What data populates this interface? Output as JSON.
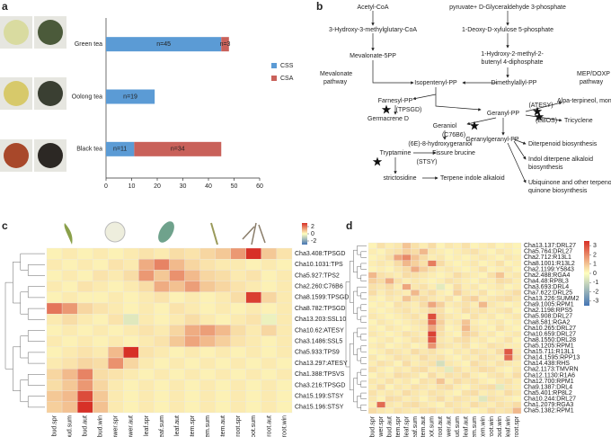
{
  "chart_data": [
    {
      "panel": "a",
      "type": "bar",
      "orientation": "horizontal",
      "stacked": true,
      "categories": [
        "Green tea",
        "Oolong tea",
        "Black tea"
      ],
      "series": [
        {
          "name": "CSS",
          "color": "#5b9bd5",
          "values": [
            45,
            19,
            11
          ],
          "value_labels": [
            "n=45",
            "n=19",
            "n=11"
          ]
        },
        {
          "name": "CSA",
          "color": "#c9615a",
          "values": [
            3,
            0,
            34
          ],
          "value_labels": [
            "n=3",
            null,
            "n=34"
          ]
        }
      ],
      "xlim": [
        0,
        60
      ],
      "xticks": [
        0,
        10,
        20,
        30,
        40,
        50,
        60
      ],
      "legend": "right"
    },
    {
      "panel": "c",
      "type": "heatmap",
      "rows": [
        "Cha3.408:TPSGD",
        "Cha10.1031:TPS",
        "Cha5.927:TPS2",
        "Cha2.260:C76B6",
        "Cha8.1599:TPSGD",
        "Cha8.782:TPSGD",
        "Cha13.203:SSL10",
        "Cha10.62:ATESY",
        "Cha3.1486:SSL5",
        "Cha5.933:TPS9",
        "Cha13.297:ATESY",
        "Cha1.388:TPSVS",
        "Cha3.216:TPSGD",
        "Cha15.199:STSY",
        "Cha15.196:STSY"
      ],
      "columns": [
        "bud.spr",
        "bud.sum",
        "bud.aut",
        "bud.win",
        "flower.spr",
        "flower.aut",
        "leaf.spr",
        "leaf.sum",
        "leaf.aut",
        "stem.spr",
        "stem.sum",
        "stem.aut",
        "root.spr",
        "root.sum",
        "root.aut",
        "root.win"
      ],
      "values": [
        [
          0.2,
          0.3,
          0.2,
          0.3,
          0.2,
          0.3,
          0.4,
          0.3,
          0.5,
          0.4,
          0.6,
          0.8,
          1.5,
          3,
          0.8,
          0.4
        ],
        [
          0.3,
          0.2,
          0.3,
          0.2,
          0.4,
          0.3,
          1.2,
          1.8,
          1.0,
          0.6,
          0.4,
          0.3,
          0.3,
          0.2,
          0.3,
          0.2
        ],
        [
          0.2,
          0.3,
          0.2,
          0.4,
          0.3,
          0.5,
          1.5,
          0.8,
          1.6,
          1.0,
          0.6,
          0.5,
          0.3,
          0.4,
          0.2,
          0.3
        ],
        [
          0.3,
          0.2,
          0.4,
          0.3,
          0.2,
          0.3,
          0.5,
          1.2,
          0.9,
          1.4,
          0.8,
          0.6,
          0.4,
          0.3,
          0.2,
          0.3
        ],
        [
          0.2,
          0.3,
          0.2,
          0.2,
          0.3,
          0.2,
          0.3,
          0.4,
          0.2,
          0.3,
          0.2,
          0.3,
          0.5,
          2.8,
          0.6,
          0.3
        ],
        [
          2,
          1.5,
          0.6,
          0.4,
          0.3,
          0.2,
          0.3,
          0.2,
          0.4,
          0.3,
          0.2,
          0.3,
          0.2,
          0.3,
          0.2,
          0.3
        ],
        [
          0.3,
          0.5,
          0.3,
          0.2,
          0.4,
          -0.5,
          0.3,
          0.2,
          0.3,
          0.5,
          0.3,
          0.2,
          0.3,
          0.4,
          -0.3,
          0.3
        ],
        [
          0.2,
          0.3,
          0.2,
          0.3,
          0.2,
          0.3,
          0.4,
          0.3,
          0.6,
          1.2,
          1.4,
          1.0,
          0.5,
          0.3,
          0.6,
          0.3
        ],
        [
          0.3,
          0.2,
          0.3,
          0.2,
          0.3,
          0.2,
          0.3,
          0.4,
          0.8,
          1.3,
          1.0,
          0.7,
          0.4,
          0.3,
          0.2,
          0.3
        ],
        [
          0.2,
          0.3,
          0.4,
          0.3,
          1.0,
          3,
          0.4,
          0.3,
          0.2,
          0.3,
          0.2,
          0.3,
          0.2,
          0.3,
          0.2,
          0.3
        ],
        [
          0.3,
          0.4,
          0.6,
          0.5,
          1.6,
          0.6,
          0.3,
          0.2,
          0.3,
          0.2,
          0.3,
          0.2,
          0.3,
          0.2,
          0.3,
          0.2
        ],
        [
          0.6,
          1.0,
          1.8,
          0.5,
          0.4,
          0.3,
          0.2,
          0.3,
          0.2,
          0.3,
          0.2,
          0.3,
          0.2,
          0.3,
          0.2,
          0.3
        ],
        [
          0.5,
          0.8,
          1.5,
          0.6,
          0.3,
          0.2,
          0.3,
          0.2,
          0.3,
          0.2,
          0.3,
          0.2,
          0.3,
          0.2,
          0.3,
          0.2
        ],
        [
          0.8,
          1.0,
          2.6,
          0.8,
          0.3,
          0.2,
          0.3,
          0.2,
          0.3,
          0.2,
          0.3,
          0.2,
          0.3,
          0.2,
          0.3,
          0.2
        ],
        [
          0.7,
          0.9,
          3,
          0.9,
          0.3,
          0.2,
          0.3,
          0.2,
          0.3,
          0.2,
          0.3,
          0.2,
          0.3,
          0.2,
          0.3,
          0.2
        ]
      ],
      "zlim": [
        -3,
        3
      ],
      "zticks": [
        2,
        0,
        -2
      ],
      "colors": [
        "#4575b4",
        "#ffffbf",
        "#d73027"
      ]
    },
    {
      "panel": "d",
      "type": "heatmap",
      "rows": [
        "Cha13.137:DRL27",
        "Cha5.764:DRL27",
        "Cha2.712:R13L1",
        "Cha8.1001:R13L2",
        "Cha2.1199:Y5843",
        "Cha2.488:RGA4",
        "Cha4.48:RP8L3",
        "Cha3.693:DRL4",
        "Cha7.622:DRL25",
        "Cha13.226:SUMM2",
        "Cha9.1005:RPM1",
        "Cha2.1198:RPS5",
        "Cha5.908:DRL27",
        "Cha8.581:RGA2",
        "Cha10.265:DRL27",
        "Cha10.659:DRL27",
        "Cha8.1550:DRL28",
        "Cha5.1205:RPM1",
        "Cha15.711:R13L1",
        "Cha14.1595:RPP13",
        "Cha14.438:RHS",
        "Cha2.1173:TMVRN",
        "Cha12.1130:R1A6",
        "Cha12.700:RPM1",
        "Cha9.1387:DRL4",
        "Cha5.401:RP8L2",
        "Cha10.244:DRL27",
        "Cha1.2079:RGA3",
        "Cha5.1382:RPM1"
      ],
      "columns": [
        "bud.spr",
        "flower.spr",
        "bud.aut",
        "stem.spr",
        "leaf.spr",
        "leaf.sum",
        "stem.aut",
        "root.sum",
        "root.aut",
        "flower.aut",
        "bud.sum",
        "leaf.aut",
        "stem.sum",
        "stem.win",
        "root.win",
        "bud.win",
        "leaf.win",
        "root.spr"
      ],
      "values": [
        [
          0.2,
          0.5,
          0.3,
          0.4,
          1.0,
          0.5,
          0.3,
          0.6,
          0.2,
          0.4,
          0.3,
          0.5,
          0.2,
          0.3,
          0.4,
          0.2,
          0.3,
          0.2
        ],
        [
          0.3,
          0.2,
          0.4,
          0.5,
          0.8,
          0.6,
          1.2,
          0.4,
          0.3,
          0.2,
          0.3,
          0.4,
          0.5,
          0.3,
          0.2,
          0.4,
          0.3,
          0.2
        ],
        [
          0.2,
          0.3,
          0.5,
          1.5,
          2.0,
          1.0,
          0.6,
          0.3,
          0.4,
          0.2,
          0.3,
          0.2,
          0.3,
          0.4,
          0.3,
          0.2,
          0.4,
          0.3
        ],
        [
          0.3,
          0.4,
          0.3,
          0.6,
          1.2,
          0.8,
          0.5,
          2.2,
          0.6,
          0.3,
          0.2,
          0.3,
          0.4,
          0.2,
          0.3,
          0.5,
          0.2,
          0.3
        ],
        [
          0.2,
          0.3,
          0.2,
          0.4,
          0.6,
          1.4,
          0.8,
          0.5,
          0.3,
          0.4,
          0.3,
          0.2,
          0.3,
          0.5,
          0.2,
          0.3,
          0.4,
          0.2
        ],
        [
          1.2,
          0.5,
          0.4,
          0.3,
          0.6,
          0.5,
          0.4,
          0.3,
          0.2,
          0.3,
          0.6,
          0.4,
          0.3,
          0.2,
          0.5,
          1.0,
          0.3,
          0.4
        ],
        [
          0.8,
          0.6,
          1.4,
          0.5,
          0.3,
          0.4,
          0.3,
          0.2,
          0.3,
          0.5,
          0.4,
          0.3,
          0.2,
          0.4,
          0.3,
          0.6,
          0.5,
          0.3
        ],
        [
          0.5,
          0.4,
          0.6,
          0.3,
          1.5,
          0.4,
          0.5,
          0.3,
          -0.5,
          0.2,
          0.6,
          0.3,
          0.4,
          0.2,
          0.3,
          0.4,
          0.2,
          0.3
        ],
        [
          0.6,
          0.3,
          0.5,
          0.4,
          0.3,
          1.2,
          0.4,
          0.6,
          0.3,
          0.2,
          0.8,
          0.4,
          0.3,
          0.5,
          0.2,
          0.3,
          0.4,
          0.6
        ],
        [
          0.3,
          0.2,
          0.4,
          0.3,
          1.0,
          0.5,
          0.6,
          0.4,
          0.3,
          0.5,
          0.2,
          0.6,
          0.8,
          0.3,
          0.4,
          0.5,
          0.6,
          0.4
        ],
        [
          0.2,
          0.3,
          0.2,
          0.5,
          0.4,
          0.3,
          0.6,
          1.5,
          0.8,
          0.3,
          0.4,
          0.5,
          0.3,
          1.2,
          0.4,
          0.3,
          0.2,
          0.3
        ],
        [
          0.3,
          0.2,
          0.3,
          0.4,
          0.5,
          0.3,
          0.4,
          0.6,
          0.5,
          0.2,
          0.3,
          0.6,
          0.4,
          0.5,
          0.3,
          0.4,
          0.5,
          0.2
        ],
        [
          0.4,
          0.3,
          0.2,
          0.3,
          0.4,
          0.5,
          0.3,
          3.0,
          0.6,
          0.4,
          0.3,
          0.2,
          0.5,
          0.3,
          0.4,
          0.2,
          0.3,
          0.4
        ],
        [
          0.2,
          0.4,
          0.3,
          0.2,
          0.3,
          0.4,
          0.5,
          2.5,
          0.8,
          0.3,
          0.4,
          1.0,
          0.3,
          0.2,
          0.3,
          0.4,
          0.2,
          0.3
        ],
        [
          0.3,
          0.2,
          0.4,
          0.3,
          0.2,
          0.3,
          0.4,
          1.5,
          0.6,
          0.2,
          0.3,
          1.2,
          0.4,
          0.3,
          0.2,
          0.5,
          0.3,
          0.2
        ],
        [
          0.4,
          0.3,
          0.2,
          0.3,
          0.5,
          0.4,
          0.3,
          3.2,
          0.5,
          0.3,
          0.2,
          0.8,
          0.6,
          0.3,
          0.4,
          0.2,
          0.3,
          0.4
        ],
        [
          0.2,
          0.3,
          0.4,
          0.2,
          0.3,
          0.5,
          0.4,
          2.8,
          0.4,
          0.3,
          0.5,
          0.6,
          0.3,
          0.4,
          0.2,
          0.3,
          0.5,
          0.2
        ],
        [
          0.3,
          0.4,
          0.2,
          0.3,
          0.4,
          0.2,
          0.3,
          1.8,
          0.5,
          0.4,
          0.3,
          0.5,
          0.2,
          0.3,
          0.5,
          0.4,
          0.3,
          0.3
        ],
        [
          0.2,
          0.3,
          0.5,
          0.4,
          0.3,
          0.6,
          0.4,
          0.5,
          0.3,
          0.2,
          0.4,
          0.3,
          0.5,
          0.4,
          0.3,
          0.6,
          2.8,
          0.4
        ],
        [
          0.4,
          0.2,
          0.3,
          0.5,
          0.4,
          0.3,
          0.6,
          0.4,
          0.5,
          0.3,
          0.2,
          0.4,
          0.3,
          0.5,
          0.4,
          0.3,
          2.5,
          0.5
        ],
        [
          0.3,
          0.5,
          0.4,
          0.2,
          0.6,
          0.3,
          0.4,
          0.5,
          -0.8,
          0.4,
          0.3,
          0.2,
          0.6,
          0.4,
          0.3,
          0.5,
          0.4,
          0.3
        ],
        [
          0.5,
          0.3,
          0.2,
          0.4,
          0.3,
          0.5,
          0.6,
          0.3,
          0.4,
          -0.5,
          0.5,
          0.3,
          0.4,
          0.6,
          0.5,
          0.3,
          0.2,
          0.4
        ],
        [
          0.2,
          0.4,
          0.3,
          0.6,
          0.5,
          0.4,
          0.2,
          0.6,
          0.3,
          0.5,
          0.4,
          0.6,
          0.3,
          0.2,
          0.4,
          0.5,
          0.3,
          0.6
        ],
        [
          0.4,
          0.3,
          0.5,
          0.3,
          0.4,
          0.2,
          0.5,
          0.4,
          1.0,
          0.3,
          0.6,
          0.4,
          0.5,
          0.3,
          0.2,
          0.4,
          0.5,
          0.3
        ],
        [
          0.3,
          0.6,
          0.2,
          0.4,
          0.3,
          0.5,
          0.4,
          0.3,
          0.5,
          0.6,
          0.3,
          0.2,
          0.4,
          0.5,
          0.6,
          -0.5,
          0.4,
          0.3
        ],
        [
          0.5,
          0.3,
          0.4,
          0.3,
          0.6,
          0.4,
          0.3,
          0.5,
          0.4,
          0.3,
          0.2,
          0.5,
          0.6,
          0.3,
          0.4,
          0.3,
          0.6,
          0.4
        ],
        [
          0.4,
          0.2,
          0.6,
          0.5,
          0.3,
          0.4,
          0.2,
          0.4,
          0.6,
          0.3,
          0.5,
          0.4,
          0.3,
          -0.6,
          0.5,
          0.4,
          0.3,
          0.2
        ],
        [
          0.3,
          2.5,
          0.4,
          0.3,
          0.5,
          0.6,
          0.4,
          0.3,
          0.2,
          0.5,
          0.4,
          0.3,
          0.6,
          0.4,
          0.3,
          0.5,
          0.4,
          0.6
        ],
        [
          0.6,
          0.4,
          0.3,
          0.5,
          0.4,
          0.3,
          0.5,
          0.6,
          0.4,
          0.3,
          0.5,
          0.4,
          0.2,
          0.3,
          0.6,
          0.4,
          0.5,
          1.2
        ]
      ],
      "zlim": [
        -3.5,
        3.5
      ],
      "zticks": [
        3,
        2,
        1,
        0,
        -1,
        -2,
        -3
      ],
      "colors": [
        "#4575b4",
        "#ffffbf",
        "#d73027"
      ]
    }
  ],
  "diagram": {
    "panel": "b",
    "nodes": [
      "Acetyl-CoA",
      "pyruvate+ D-Glyceraldehyde 3-phosphate",
      "3-Hydroxy-3-methylglutary-CoA",
      "1-Deoxy-D-xylulose 5-phosphate",
      "Mevalonate-5PP",
      "Mevalonate",
      "pathway",
      "1-Hydroxy-2-methyl-2-",
      "butenyl 4-diphosphate",
      "MEP/DOXP",
      "pathway",
      "Isopentenyl-PP",
      "Dimethylallyl-PP",
      "Farnesyl-PP",
      "(TPSGD)",
      "Germacrene D",
      "Geranyl-PP",
      "(ATESY)",
      "Alpa-terpineol, monoterpenol",
      "(EBOS)",
      "Tricyclene",
      "Geraniol",
      "(C76B6)",
      "(6E)-8-hydroxygeraniol",
      "Geranylgeranyl-PP",
      "Diterpenoid biosynthesis",
      "Indol diterpene alkaloid",
      "biosynthesis",
      "Ubiquinone and other terpenoid-",
      "quinone biosynthesis",
      "Tryptamine",
      "Fissure brucine",
      "(STSY)",
      "strictosidine",
      "Terpene indole alkaloid"
    ]
  }
}
